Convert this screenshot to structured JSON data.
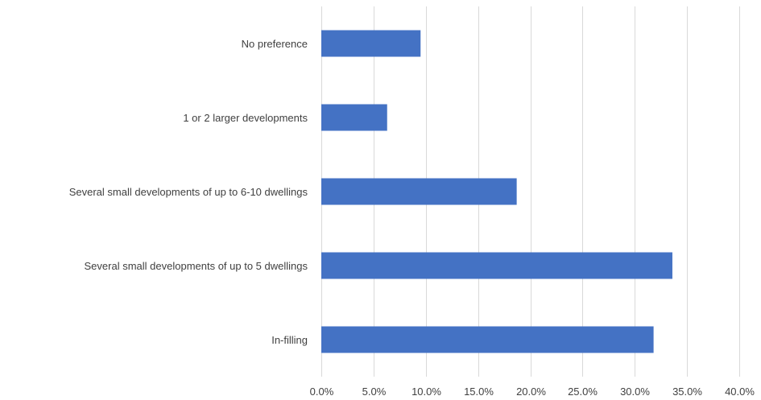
{
  "chart_data": {
    "type": "bar",
    "orientation": "horizontal",
    "title": "",
    "xlabel": "",
    "ylabel": "",
    "categories": [
      "No preference",
      "1 or 2 larger developments",
      "Several small developments of up to 6-10 dwellings",
      "Several small developments of up to 5 dwellings",
      "In-filling"
    ],
    "values": [
      9.5,
      6.3,
      18.7,
      33.6,
      31.8
    ],
    "xlim": [
      0,
      40
    ],
    "xticks": [
      0,
      5,
      10,
      15,
      20,
      25,
      30,
      35,
      40
    ],
    "tick_labels": [
      "0.0%",
      "5.0%",
      "10.0%",
      "15.0%",
      "20.0%",
      "25.0%",
      "30.0%",
      "35.0%",
      "40.0%"
    ],
    "grid": true,
    "legend": "none",
    "bar_color": "#4472c4",
    "grid_color": "#d9d9d9",
    "text_color": "#404040"
  }
}
